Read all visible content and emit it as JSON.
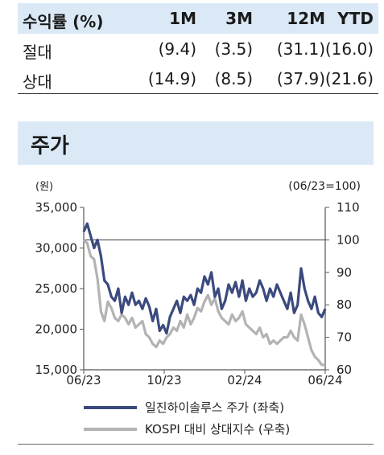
{
  "returns_table": {
    "header": [
      "수익률 (%)",
      "1M",
      "3M",
      "12M",
      "YTD"
    ],
    "rows": [
      {
        "label": "절대",
        "values": [
          "(9.4)",
          "(3.5)",
          "(31.1)",
          "(16.0)"
        ]
      },
      {
        "label": "상대",
        "values": [
          "(14.9)",
          "(8.5)",
          "(37.9)",
          "(21.6)"
        ]
      }
    ]
  },
  "section_title": "주가",
  "chart_data": {
    "type": "line",
    "left_unit": "(원)",
    "right_unit": "(06/23=100)",
    "x_ticks": [
      "06/23",
      "10/23",
      "02/24",
      "06/24"
    ],
    "y_left_ticks": [
      "35,000",
      "30,000",
      "25,000",
      "20,000",
      "15,000"
    ],
    "y_right_ticks": [
      "110",
      "100",
      "90",
      "80",
      "70",
      "60"
    ],
    "ylim_left": [
      15000,
      35000
    ],
    "ylim_right": [
      60,
      110
    ],
    "reference_line_right": 100,
    "colors": {
      "stock": "#3b4a7e",
      "kospi_rel": "#b3b3b3"
    },
    "series": [
      {
        "name": "일진하이솔루스 주가 (좌축)",
        "axis": "left",
        "values": [
          32000,
          33000,
          31500,
          30000,
          31000,
          29000,
          26000,
          25500,
          24000,
          23500,
          25000,
          22000,
          24000,
          23000,
          24500,
          23000,
          23500,
          22500,
          23800,
          22800,
          21000,
          22500,
          19800,
          20500,
          19500,
          21500,
          22500,
          23500,
          22000,
          24000,
          23500,
          24200,
          23000,
          25000,
          24500,
          26500,
          25500,
          27000,
          24000,
          25000,
          22500,
          23500,
          25500,
          24500,
          25800,
          24000,
          26000,
          23500,
          25000,
          24000,
          24500,
          26000,
          25000,
          23500,
          25000,
          24000,
          25500,
          24500,
          23500,
          22500,
          24500,
          22000,
          23000,
          27500,
          25000,
          23500,
          22500,
          24000,
          22000,
          21500,
          22500
        ]
      },
      {
        "name": "KOSPI 대비 상대지수 (우축)",
        "axis": "right",
        "values": [
          100,
          99,
          95,
          94,
          88,
          78,
          75,
          81,
          79,
          76,
          75,
          77,
          76,
          74,
          76,
          73,
          74,
          75,
          71,
          70,
          68,
          67,
          69,
          68,
          70,
          71,
          73,
          72,
          75,
          73,
          77,
          74,
          76,
          79,
          78,
          81,
          83,
          80,
          82,
          78,
          76,
          75,
          74,
          77,
          75,
          76,
          78,
          74,
          73,
          72,
          71,
          73,
          70,
          71,
          68,
          69,
          68,
          69,
          70,
          70,
          72,
          70,
          69,
          77,
          74,
          70,
          66,
          64,
          63,
          61.5,
          61.5
        ]
      }
    ]
  }
}
